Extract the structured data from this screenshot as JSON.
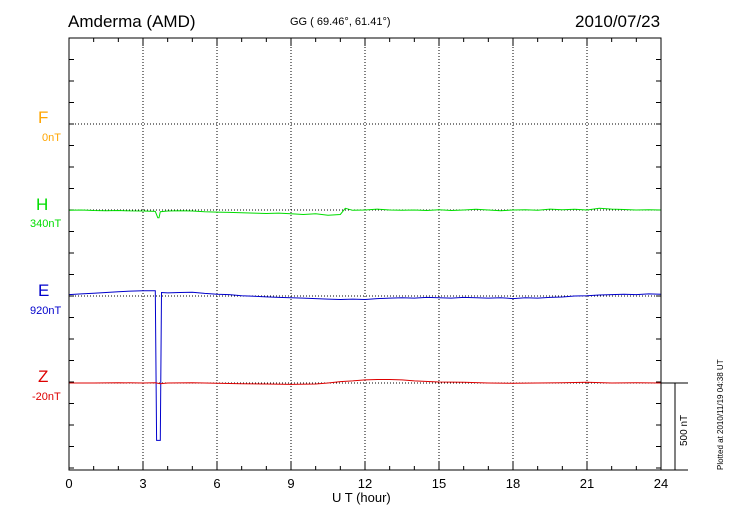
{
  "header": {
    "station": "Amderma (AMD)",
    "coords": "GG ( 69.46°,  61.41°)",
    "date": "2010/07/23"
  },
  "chart_data": {
    "type": "line",
    "xlabel": "U T (hour)",
    "xlim": [
      0,
      24
    ],
    "xticks": [
      "0",
      "3",
      "6",
      "9",
      "12",
      "15",
      "18",
      "21",
      "24"
    ],
    "grid": true,
    "scale_label": "500 nT",
    "components": [
      {
        "name": "F",
        "offset": "0nT",
        "color": "#ffa500"
      },
      {
        "name": "H",
        "offset": "340nT",
        "color": "#00dd00"
      },
      {
        "name": "E",
        "offset": "920nT",
        "color": "#0000cc"
      },
      {
        "name": "Z",
        "offset": "-20nT",
        "color": "#dd0000"
      }
    ],
    "series": [
      {
        "name": "H",
        "x": [
          0,
          0.5,
          1,
          1.5,
          2,
          2.5,
          3,
          3.5,
          3.6,
          3.65,
          3.7,
          4,
          4.5,
          5,
          5.5,
          6,
          6.5,
          7,
          7.5,
          8,
          8.5,
          9,
          9.5,
          10,
          10.5,
          11,
          11.2,
          11.5,
          12,
          12.5,
          13,
          13.5,
          14,
          14.5,
          15,
          15.5,
          16,
          16.5,
          17,
          17.5,
          18,
          18.5,
          19,
          19.5,
          20,
          20.5,
          21,
          21.5,
          22,
          22.5,
          23,
          23.5,
          24
        ],
        "y": [
          -2,
          0,
          -3,
          -4,
          -3,
          -5,
          -6,
          -8,
          -45,
          -45,
          -10,
          -6,
          -4,
          -6,
          -10,
          -12,
          -14,
          -16,
          -18,
          -20,
          -18,
          -22,
          -26,
          -22,
          -30,
          -26,
          10,
          -2,
          0,
          5,
          0,
          -2,
          0,
          -3,
          2,
          -3,
          0,
          4,
          0,
          -4,
          0,
          2,
          -2,
          5,
          2,
          4,
          0,
          10,
          5,
          3,
          0,
          2,
          0
        ]
      },
      {
        "name": "E",
        "x": [
          0,
          0.5,
          1,
          1.5,
          2,
          2.5,
          3,
          3.5,
          3.55,
          3.6,
          3.7,
          3.75,
          4,
          4.5,
          5,
          5.5,
          6,
          6.5,
          7,
          7.5,
          8,
          8.5,
          9,
          9.5,
          10,
          10.5,
          11,
          11.5,
          12,
          12.5,
          13,
          13.5,
          14,
          14.5,
          15,
          15.5,
          16,
          16.5,
          17,
          17.5,
          18,
          18.5,
          19,
          19.5,
          20,
          20.5,
          21,
          21.5,
          22,
          22.5,
          23,
          23.5,
          24
        ],
        "y": [
          8,
          12,
          16,
          20,
          24,
          28,
          30,
          30,
          -830,
          -830,
          -830,
          20,
          18,
          20,
          22,
          15,
          10,
          8,
          2,
          -2,
          -5,
          -8,
          -10,
          -12,
          -15,
          -18,
          -20,
          -18,
          -20,
          -15,
          -12,
          -10,
          -12,
          -8,
          -10,
          -12,
          -8,
          -10,
          -12,
          -10,
          -15,
          -10,
          -12,
          -8,
          -6,
          0,
          2,
          6,
          8,
          10,
          8,
          12,
          10
        ]
      },
      {
        "name": "Z",
        "x": [
          0,
          1,
          2,
          3,
          3.5,
          3.7,
          4,
          5,
          6,
          7,
          8,
          9,
          10,
          10.5,
          11,
          11.5,
          12,
          12.5,
          13,
          13.5,
          14,
          15,
          16,
          17,
          18,
          19,
          20,
          21,
          22,
          23,
          24
        ],
        "y": [
          0,
          0,
          2,
          0,
          2,
          -4,
          0,
          2,
          -2,
          -4,
          -6,
          -8,
          -6,
          0,
          8,
          12,
          18,
          20,
          20,
          18,
          12,
          6,
          4,
          0,
          -2,
          0,
          2,
          4,
          0,
          2,
          0
        ]
      }
    ]
  },
  "footer": {
    "plotted": "Plotted at 2010/11/19 04:38 UT"
  }
}
